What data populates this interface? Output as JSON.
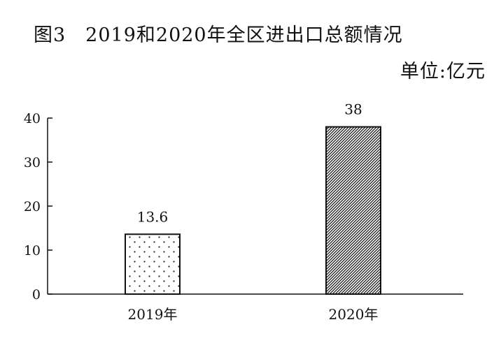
{
  "chart_data": {
    "type": "bar",
    "title": "图3　2019和2020年全区进出口总额情况",
    "unit_label": "单位:亿元",
    "categories": [
      "2019年",
      "2020年"
    ],
    "values": [
      13.6,
      38
    ],
    "data_labels": [
      "13.6",
      "38"
    ],
    "yticks": [
      "0",
      "10",
      "20",
      "30",
      "40"
    ],
    "ylim": [
      0,
      40
    ],
    "grid": false,
    "bar_patterns": [
      "dots",
      "diagonal-hatch"
    ]
  }
}
